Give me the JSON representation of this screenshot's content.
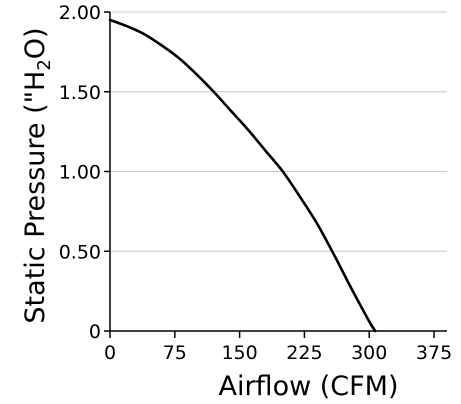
{
  "chart_data": {
    "type": "line",
    "title": "",
    "xlabel": "Airflow (CFM)",
    "ylabel": {
      "prefix": "Static Pressure (\"H",
      "subscript": "2",
      "suffix": "O)"
    },
    "xlim": [
      0,
      390
    ],
    "ylim": [
      0,
      2
    ],
    "x_ticks": [
      0,
      75,
      150,
      225,
      300,
      375
    ],
    "x_tick_labels": [
      "0",
      "75",
      "150",
      "225",
      "300",
      "375"
    ],
    "y_ticks": [
      0,
      0.5,
      1,
      1.5,
      2
    ],
    "y_tick_labels": [
      "0",
      "0.50",
      "1.00",
      "1.50",
      "2.00"
    ],
    "grid": "horizontal",
    "legend": "none",
    "series": [
      {
        "color": "#000000",
        "points": [
          [
            0,
            1.95
          ],
          [
            20,
            1.91
          ],
          [
            40,
            1.86
          ],
          [
            60,
            1.79
          ],
          [
            80,
            1.71
          ],
          [
            100,
            1.61
          ],
          [
            120,
            1.5
          ],
          [
            140,
            1.38
          ],
          [
            160,
            1.26
          ],
          [
            180,
            1.13
          ],
          [
            200,
            1.0
          ],
          [
            220,
            0.84
          ],
          [
            240,
            0.67
          ],
          [
            260,
            0.47
          ],
          [
            280,
            0.26
          ],
          [
            300,
            0.06
          ],
          [
            307,
            0.0
          ]
        ]
      }
    ]
  },
  "colors": {
    "curve": "#000000",
    "axis": "#000000",
    "grid": "#c8c8c8",
    "background": "#ffffff"
  }
}
